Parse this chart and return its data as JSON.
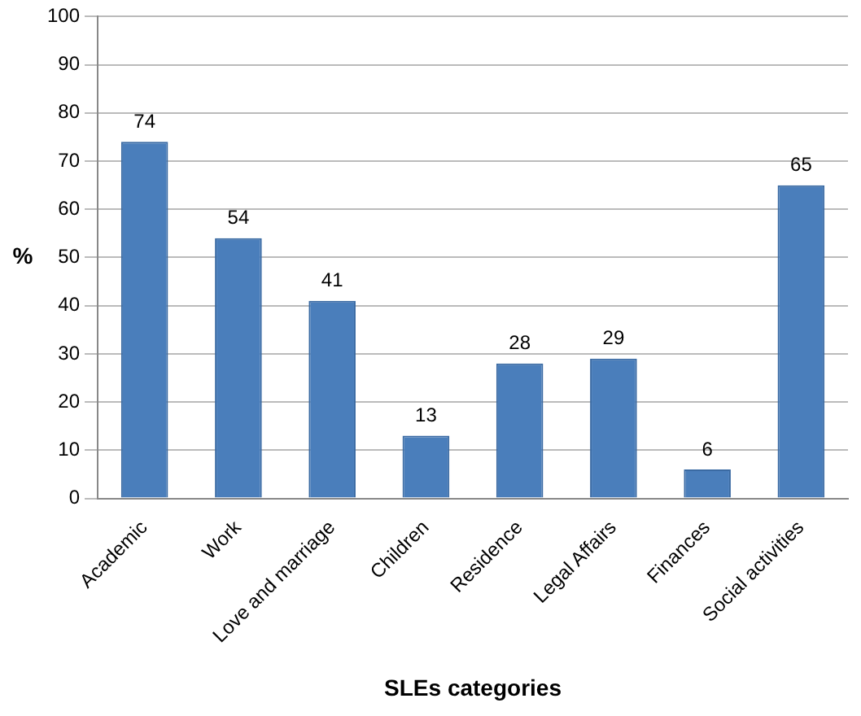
{
  "chart_data": {
    "type": "bar",
    "xlabel": "SLEs categories",
    "ylabel": "%",
    "categories": [
      "Academic",
      "Work",
      "Love and marriage",
      "Children",
      "Residence",
      "Legal Affairs",
      "Finances",
      "Social activities"
    ],
    "values": [
      74,
      54,
      41,
      13,
      28,
      29,
      6,
      65
    ],
    "color": "#4a7ebb",
    "ylim": [
      0,
      100
    ],
    "yticks": [
      0,
      10,
      20,
      30,
      40,
      50,
      60,
      70,
      80,
      90,
      100
    ],
    "grid": "y",
    "data_labels": true,
    "legend": false
  }
}
